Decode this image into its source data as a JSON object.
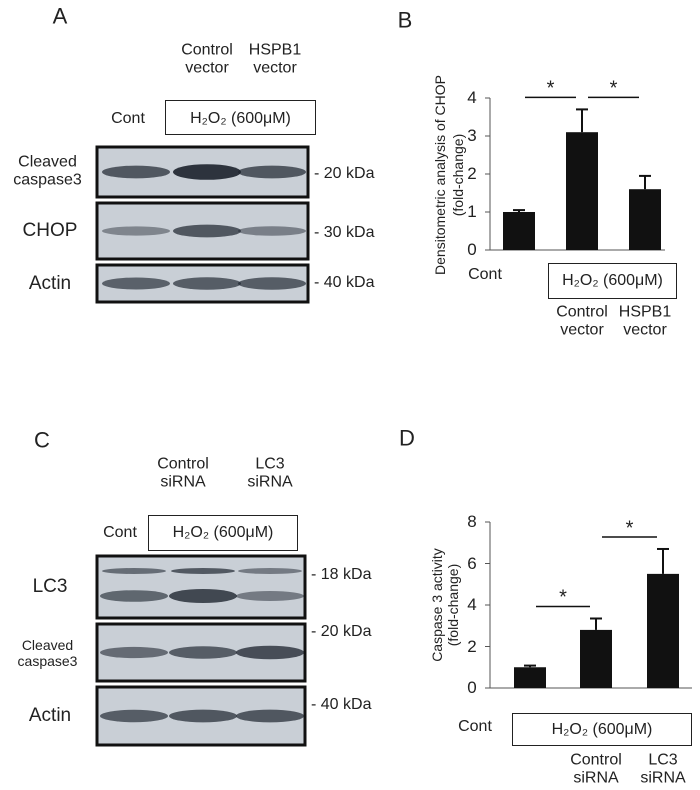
{
  "panels": {
    "a": "A",
    "b": "B",
    "c": "C",
    "d": "D"
  },
  "blot_a": {
    "control_lane": "Cont",
    "groups": [
      "Control vector",
      "HSPB1 vector"
    ],
    "treatment": "H₂O₂ (600μM)",
    "rows": [
      {
        "label": "Cleaved caspase3",
        "size": "- 20 kDa"
      },
      {
        "label": "CHOP",
        "size": "- 30 kDa"
      },
      {
        "label": "Actin",
        "size": "- 40 kDa"
      }
    ]
  },
  "blot_c": {
    "control_lane": "Cont",
    "groups": [
      "Control siRNA",
      "LC3 siRNA"
    ],
    "treatment": "H₂O₂ (600μM)",
    "rows": [
      {
        "label": "LC3",
        "size": "- 18 kDa"
      },
      {
        "label": "Cleaved caspase3",
        "size": "- 20 kDa"
      },
      {
        "label": "Actin",
        "size": "- 40 kDa"
      }
    ]
  },
  "chart_data": [
    {
      "type": "bar",
      "y_label": [
        "Densitometric analysis of CHOP",
        "(fold-change)"
      ],
      "categories": [
        "Cont",
        "Control vector",
        "HSPB1 vector"
      ],
      "treatment": "H₂O₂ (600μM)",
      "values": [
        1.0,
        3.1,
        1.6
      ],
      "errors": [
        0.05,
        0.6,
        0.35
      ],
      "color": "#111111",
      "ylim": [
        0,
        4
      ],
      "yticks": [
        0,
        1,
        2,
        3,
        4
      ],
      "significance": [
        "*",
        "*"
      ]
    },
    {
      "type": "bar",
      "y_label": [
        "Caspase 3 activity",
        "(fold-change)"
      ],
      "categories": [
        "Cont",
        "Control siRNA",
        "LC3 siRNA"
      ],
      "treatment": "H₂O₂ (600μM)",
      "values": [
        1.0,
        2.8,
        5.5
      ],
      "errors": [
        0.08,
        0.55,
        1.2
      ],
      "color": "#111111",
      "ylim": [
        0,
        8
      ],
      "yticks": [
        0,
        2,
        4,
        6,
        8
      ],
      "significance": [
        "*",
        "*"
      ]
    }
  ]
}
